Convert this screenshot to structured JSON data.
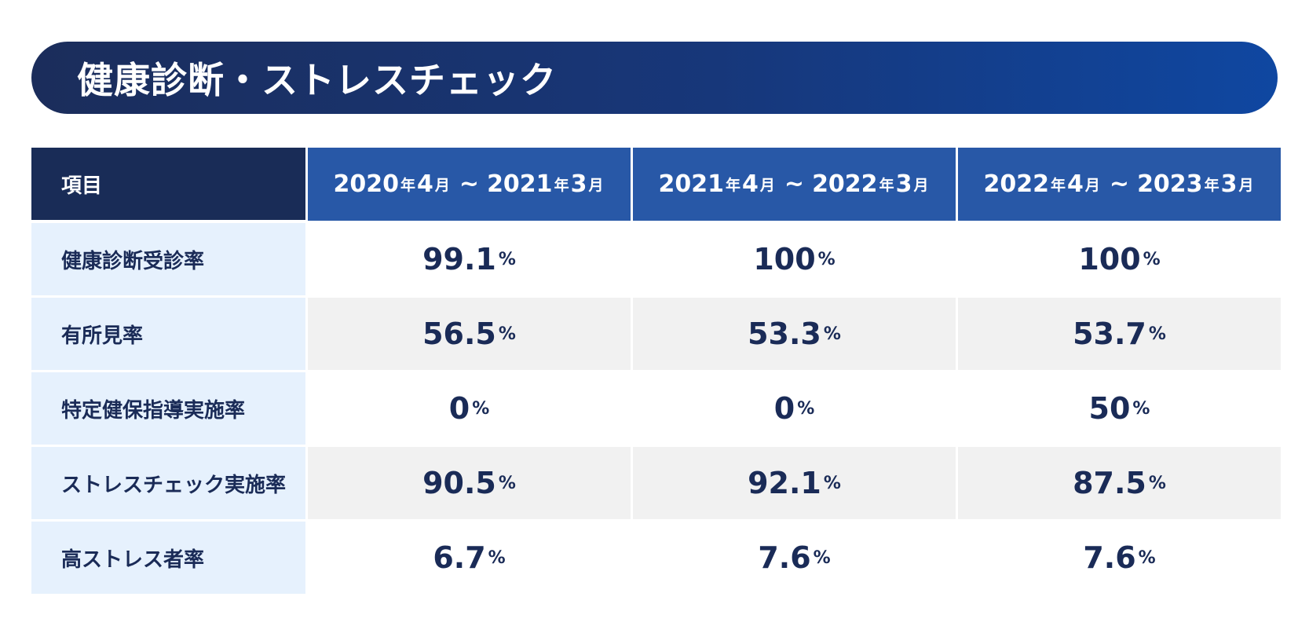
{
  "title": "健康診断・ストレスチェック",
  "table": {
    "header_label": "項目",
    "periods": [
      {
        "start_year": "2020",
        "start_month": "4",
        "end_year": "2021",
        "end_month": "3"
      },
      {
        "start_year": "2021",
        "start_month": "4",
        "end_year": "2022",
        "end_month": "3"
      },
      {
        "start_year": "2022",
        "start_month": "4",
        "end_year": "2023",
        "end_month": "3"
      }
    ],
    "units": {
      "year": "年",
      "month": "月",
      "range": "~",
      "percent": "%"
    },
    "rows": [
      {
        "label": "健康診断受診率",
        "values": [
          "99.1",
          "100",
          "100"
        ]
      },
      {
        "label": "有所見率",
        "values": [
          "56.5",
          "53.3",
          "53.7"
        ]
      },
      {
        "label": "特定健保指導実施率",
        "values": [
          "0",
          "0",
          "50"
        ]
      },
      {
        "label": "ストレスチェック実施率",
        "values": [
          "90.5",
          "92.1",
          "87.5"
        ]
      },
      {
        "label": "高ストレス者率",
        "values": [
          "6.7",
          "7.6",
          "7.6"
        ]
      }
    ]
  },
  "chart_data": {
    "type": "table",
    "title": "健康診断・ストレスチェック",
    "columns": [
      "項目",
      "2020年4月 ~ 2021年3月",
      "2021年4月 ~ 2022年3月",
      "2022年4月 ~ 2023年3月"
    ],
    "rows": [
      [
        "健康診断受診率",
        "99.1%",
        "100%",
        "100%"
      ],
      [
        "有所見率",
        "56.5%",
        "53.3%",
        "53.7%"
      ],
      [
        "特定健保指導実施率",
        "0%",
        "0%",
        "50%"
      ],
      [
        "ストレスチェック実施率",
        "90.5%",
        "92.1%",
        "87.5%"
      ],
      [
        "高ストレス者率",
        "6.7%",
        "7.6%",
        "7.6%"
      ]
    ]
  },
  "colors": {
    "banner_start": "#1b2d5b",
    "banner_end": "#0f47a1",
    "header_label_bg": "#192c57",
    "header_period_bg": "#2858a7",
    "row_label_bg": "#e6f1fd",
    "row_alt_bg": "#f1f1f1",
    "text_navy": "#1a2b57"
  }
}
